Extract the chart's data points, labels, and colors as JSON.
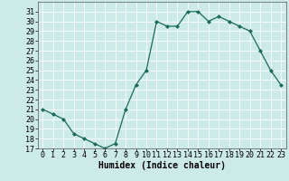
{
  "x": [
    0,
    1,
    2,
    3,
    4,
    5,
    6,
    7,
    8,
    9,
    10,
    11,
    12,
    13,
    14,
    15,
    16,
    17,
    18,
    19,
    20,
    21,
    22,
    23
  ],
  "y": [
    21,
    20.5,
    20,
    18.5,
    18,
    17.5,
    17,
    17.5,
    21,
    23.5,
    25,
    30,
    29.5,
    29.5,
    31,
    31,
    30,
    30.5,
    30,
    29.5,
    29,
    27,
    25,
    23.5
  ],
  "line_color": "#1a6b5a",
  "marker": "D",
  "marker_size": 2,
  "bg_color": "#cceae7",
  "plot_bg": "#cceae7",
  "grid_color": "#ffffff",
  "xlabel": "Humidex (Indice chaleur)",
  "ylim": [
    17,
    32
  ],
  "xlim": [
    -0.5,
    23.5
  ],
  "yticks": [
    17,
    18,
    19,
    20,
    21,
    22,
    23,
    24,
    25,
    26,
    27,
    28,
    29,
    30,
    31
  ],
  "xticks": [
    0,
    1,
    2,
    3,
    4,
    5,
    6,
    7,
    8,
    9,
    10,
    11,
    12,
    13,
    14,
    15,
    16,
    17,
    18,
    19,
    20,
    21,
    22,
    23
  ],
  "xlabel_fontsize": 7,
  "tick_fontsize": 6,
  "linewidth": 0.9
}
